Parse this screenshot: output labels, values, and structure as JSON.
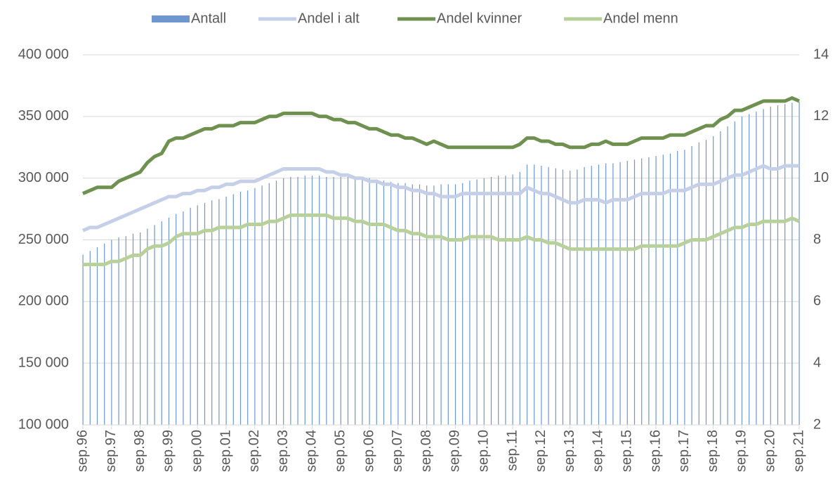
{
  "chart_data": {
    "type": "combo",
    "categories": [
      "sep.96",
      null,
      null,
      null,
      "sep.97",
      null,
      null,
      null,
      "sep.98",
      null,
      null,
      null,
      "sep.99",
      null,
      null,
      null,
      "sep.00",
      null,
      null,
      null,
      "sep.01",
      null,
      null,
      null,
      "sep.02",
      null,
      null,
      null,
      "sep.03",
      null,
      null,
      null,
      "sep.04",
      null,
      null,
      null,
      "sep.05",
      null,
      null,
      null,
      "sep.06",
      null,
      null,
      null,
      "sep.07",
      null,
      null,
      null,
      "sep.08",
      null,
      null,
      null,
      "sep.09",
      null,
      null,
      null,
      "sep.10",
      null,
      null,
      null,
      "sep.11",
      null,
      null,
      null,
      "sep.12",
      null,
      null,
      null,
      "sep.13",
      null,
      null,
      null,
      "sep.14",
      null,
      null,
      null,
      "sep.15",
      null,
      null,
      null,
      "sep.16",
      null,
      null,
      null,
      "sep.17",
      null,
      null,
      null,
      "sep.18",
      null,
      null,
      null,
      "sep.19",
      null,
      null,
      null,
      "sep.20",
      null,
      null,
      null,
      "sep.21"
    ],
    "series": [
      {
        "name": "Antall",
        "mark": "bar",
        "color": "#6f97cf",
        "axis": "y",
        "values": [
          238000,
          241000,
          244000,
          247000,
          250000,
          252000,
          253000,
          255000,
          256000,
          259000,
          262000,
          265000,
          268000,
          271000,
          273000,
          276000,
          278000,
          280000,
          282000,
          283000,
          285000,
          287000,
          289000,
          290000,
          292000,
          294000,
          296000,
          298000,
          300000,
          301000,
          301000,
          302000,
          302000,
          302000,
          301000,
          301000,
          301000,
          301000,
          300000,
          300000,
          300000,
          299000,
          298000,
          297000,
          296000,
          296000,
          295000,
          295000,
          294000,
          294000,
          295000,
          295000,
          295000,
          296000,
          298000,
          299000,
          300000,
          301000,
          302000,
          302000,
          303000,
          305000,
          311000,
          311000,
          310000,
          309000,
          308000,
          307000,
          306000,
          307000,
          309000,
          310000,
          311000,
          312000,
          312000,
          313000,
          314000,
          315000,
          316000,
          317000,
          318000,
          319000,
          320000,
          322000,
          323000,
          326000,
          329000,
          331000,
          334000,
          338000,
          342000,
          346000,
          350000,
          352000,
          354000,
          356000,
          358000,
          359000,
          360000,
          361000,
          362000
        ]
      },
      {
        "name": "Andel i alt",
        "mark": "line",
        "color": "#c5cfe8",
        "axis": "y2",
        "values": [
          8.3,
          8.4,
          8.4,
          8.5,
          8.6,
          8.7,
          8.8,
          8.9,
          9.0,
          9.1,
          9.2,
          9.3,
          9.4,
          9.4,
          9.5,
          9.5,
          9.6,
          9.6,
          9.7,
          9.7,
          9.8,
          9.8,
          9.9,
          9.9,
          9.9,
          10.0,
          10.1,
          10.2,
          10.3,
          10.3,
          10.3,
          10.3,
          10.3,
          10.3,
          10.2,
          10.2,
          10.1,
          10.1,
          10.0,
          10.0,
          9.9,
          9.9,
          9.8,
          9.8,
          9.7,
          9.7,
          9.6,
          9.6,
          9.5,
          9.5,
          9.4,
          9.4,
          9.4,
          9.5,
          9.5,
          9.5,
          9.5,
          9.5,
          9.5,
          9.5,
          9.5,
          9.5,
          9.7,
          9.6,
          9.5,
          9.5,
          9.4,
          9.3,
          9.2,
          9.2,
          9.3,
          9.3,
          9.3,
          9.2,
          9.3,
          9.3,
          9.3,
          9.4,
          9.5,
          9.5,
          9.5,
          9.5,
          9.6,
          9.6,
          9.6,
          9.7,
          9.8,
          9.8,
          9.8,
          9.9,
          10.0,
          10.1,
          10.1,
          10.2,
          10.3,
          10.4,
          10.3,
          10.3,
          10.4,
          10.4,
          10.4
        ]
      },
      {
        "name": "Andel kvinner",
        "mark": "line",
        "color": "#6f9150",
        "axis": "y2",
        "values": [
          9.5,
          9.6,
          9.7,
          9.7,
          9.7,
          9.9,
          10.0,
          10.1,
          10.2,
          10.5,
          10.7,
          10.8,
          11.2,
          11.3,
          11.3,
          11.4,
          11.5,
          11.6,
          11.6,
          11.7,
          11.7,
          11.7,
          11.8,
          11.8,
          11.8,
          11.9,
          12.0,
          12.0,
          12.1,
          12.1,
          12.1,
          12.1,
          12.1,
          12.0,
          12.0,
          11.9,
          11.9,
          11.8,
          11.8,
          11.7,
          11.6,
          11.6,
          11.5,
          11.4,
          11.4,
          11.3,
          11.3,
          11.2,
          11.1,
          11.2,
          11.1,
          11.0,
          11.0,
          11.0,
          11.0,
          11.0,
          11.0,
          11.0,
          11.0,
          11.0,
          11.0,
          11.1,
          11.3,
          11.3,
          11.2,
          11.2,
          11.1,
          11.1,
          11.0,
          11.0,
          11.0,
          11.1,
          11.1,
          11.2,
          11.1,
          11.1,
          11.1,
          11.2,
          11.3,
          11.3,
          11.3,
          11.3,
          11.4,
          11.4,
          11.4,
          11.5,
          11.6,
          11.7,
          11.7,
          11.9,
          12.0,
          12.2,
          12.2,
          12.3,
          12.4,
          12.5,
          12.5,
          12.5,
          12.5,
          12.6,
          12.5
        ]
      },
      {
        "name": "Andel menn",
        "mark": "line",
        "color": "#b8d09a",
        "axis": "y2",
        "values": [
          7.2,
          7.2,
          7.2,
          7.2,
          7.3,
          7.3,
          7.4,
          7.5,
          7.5,
          7.7,
          7.8,
          7.8,
          7.9,
          8.1,
          8.2,
          8.2,
          8.2,
          8.3,
          8.3,
          8.4,
          8.4,
          8.4,
          8.4,
          8.5,
          8.5,
          8.5,
          8.6,
          8.6,
          8.7,
          8.8,
          8.8,
          8.8,
          8.8,
          8.8,
          8.8,
          8.7,
          8.7,
          8.7,
          8.6,
          8.6,
          8.5,
          8.5,
          8.5,
          8.4,
          8.3,
          8.3,
          8.2,
          8.2,
          8.1,
          8.1,
          8.1,
          8.0,
          8.0,
          8.0,
          8.1,
          8.1,
          8.1,
          8.1,
          8.0,
          8.0,
          8.0,
          8.0,
          8.1,
          8.0,
          8.0,
          7.9,
          7.9,
          7.8,
          7.7,
          7.7,
          7.7,
          7.7,
          7.7,
          7.7,
          7.7,
          7.7,
          7.7,
          7.7,
          7.8,
          7.8,
          7.8,
          7.8,
          7.8,
          7.8,
          7.9,
          8.0,
          8.0,
          8.0,
          8.1,
          8.2,
          8.3,
          8.4,
          8.4,
          8.5,
          8.5,
          8.6,
          8.6,
          8.6,
          8.6,
          8.7,
          8.6
        ]
      }
    ],
    "ylim": [
      100000,
      400000
    ],
    "yticks": [
      {
        "value": 100000,
        "label": "100 000"
      },
      {
        "value": 150000,
        "label": "150 000"
      },
      {
        "value": 200000,
        "label": "200 000"
      },
      {
        "value": 250000,
        "label": "250 000"
      },
      {
        "value": 300000,
        "label": "300 000"
      },
      {
        "value": 350000,
        "label": "350 000"
      },
      {
        "value": 400000,
        "label": "400 000"
      }
    ],
    "y2lim": [
      2,
      14
    ],
    "y2ticks": [
      2,
      4,
      6,
      8,
      10,
      12,
      14
    ],
    "grid": true,
    "legend": "top"
  }
}
